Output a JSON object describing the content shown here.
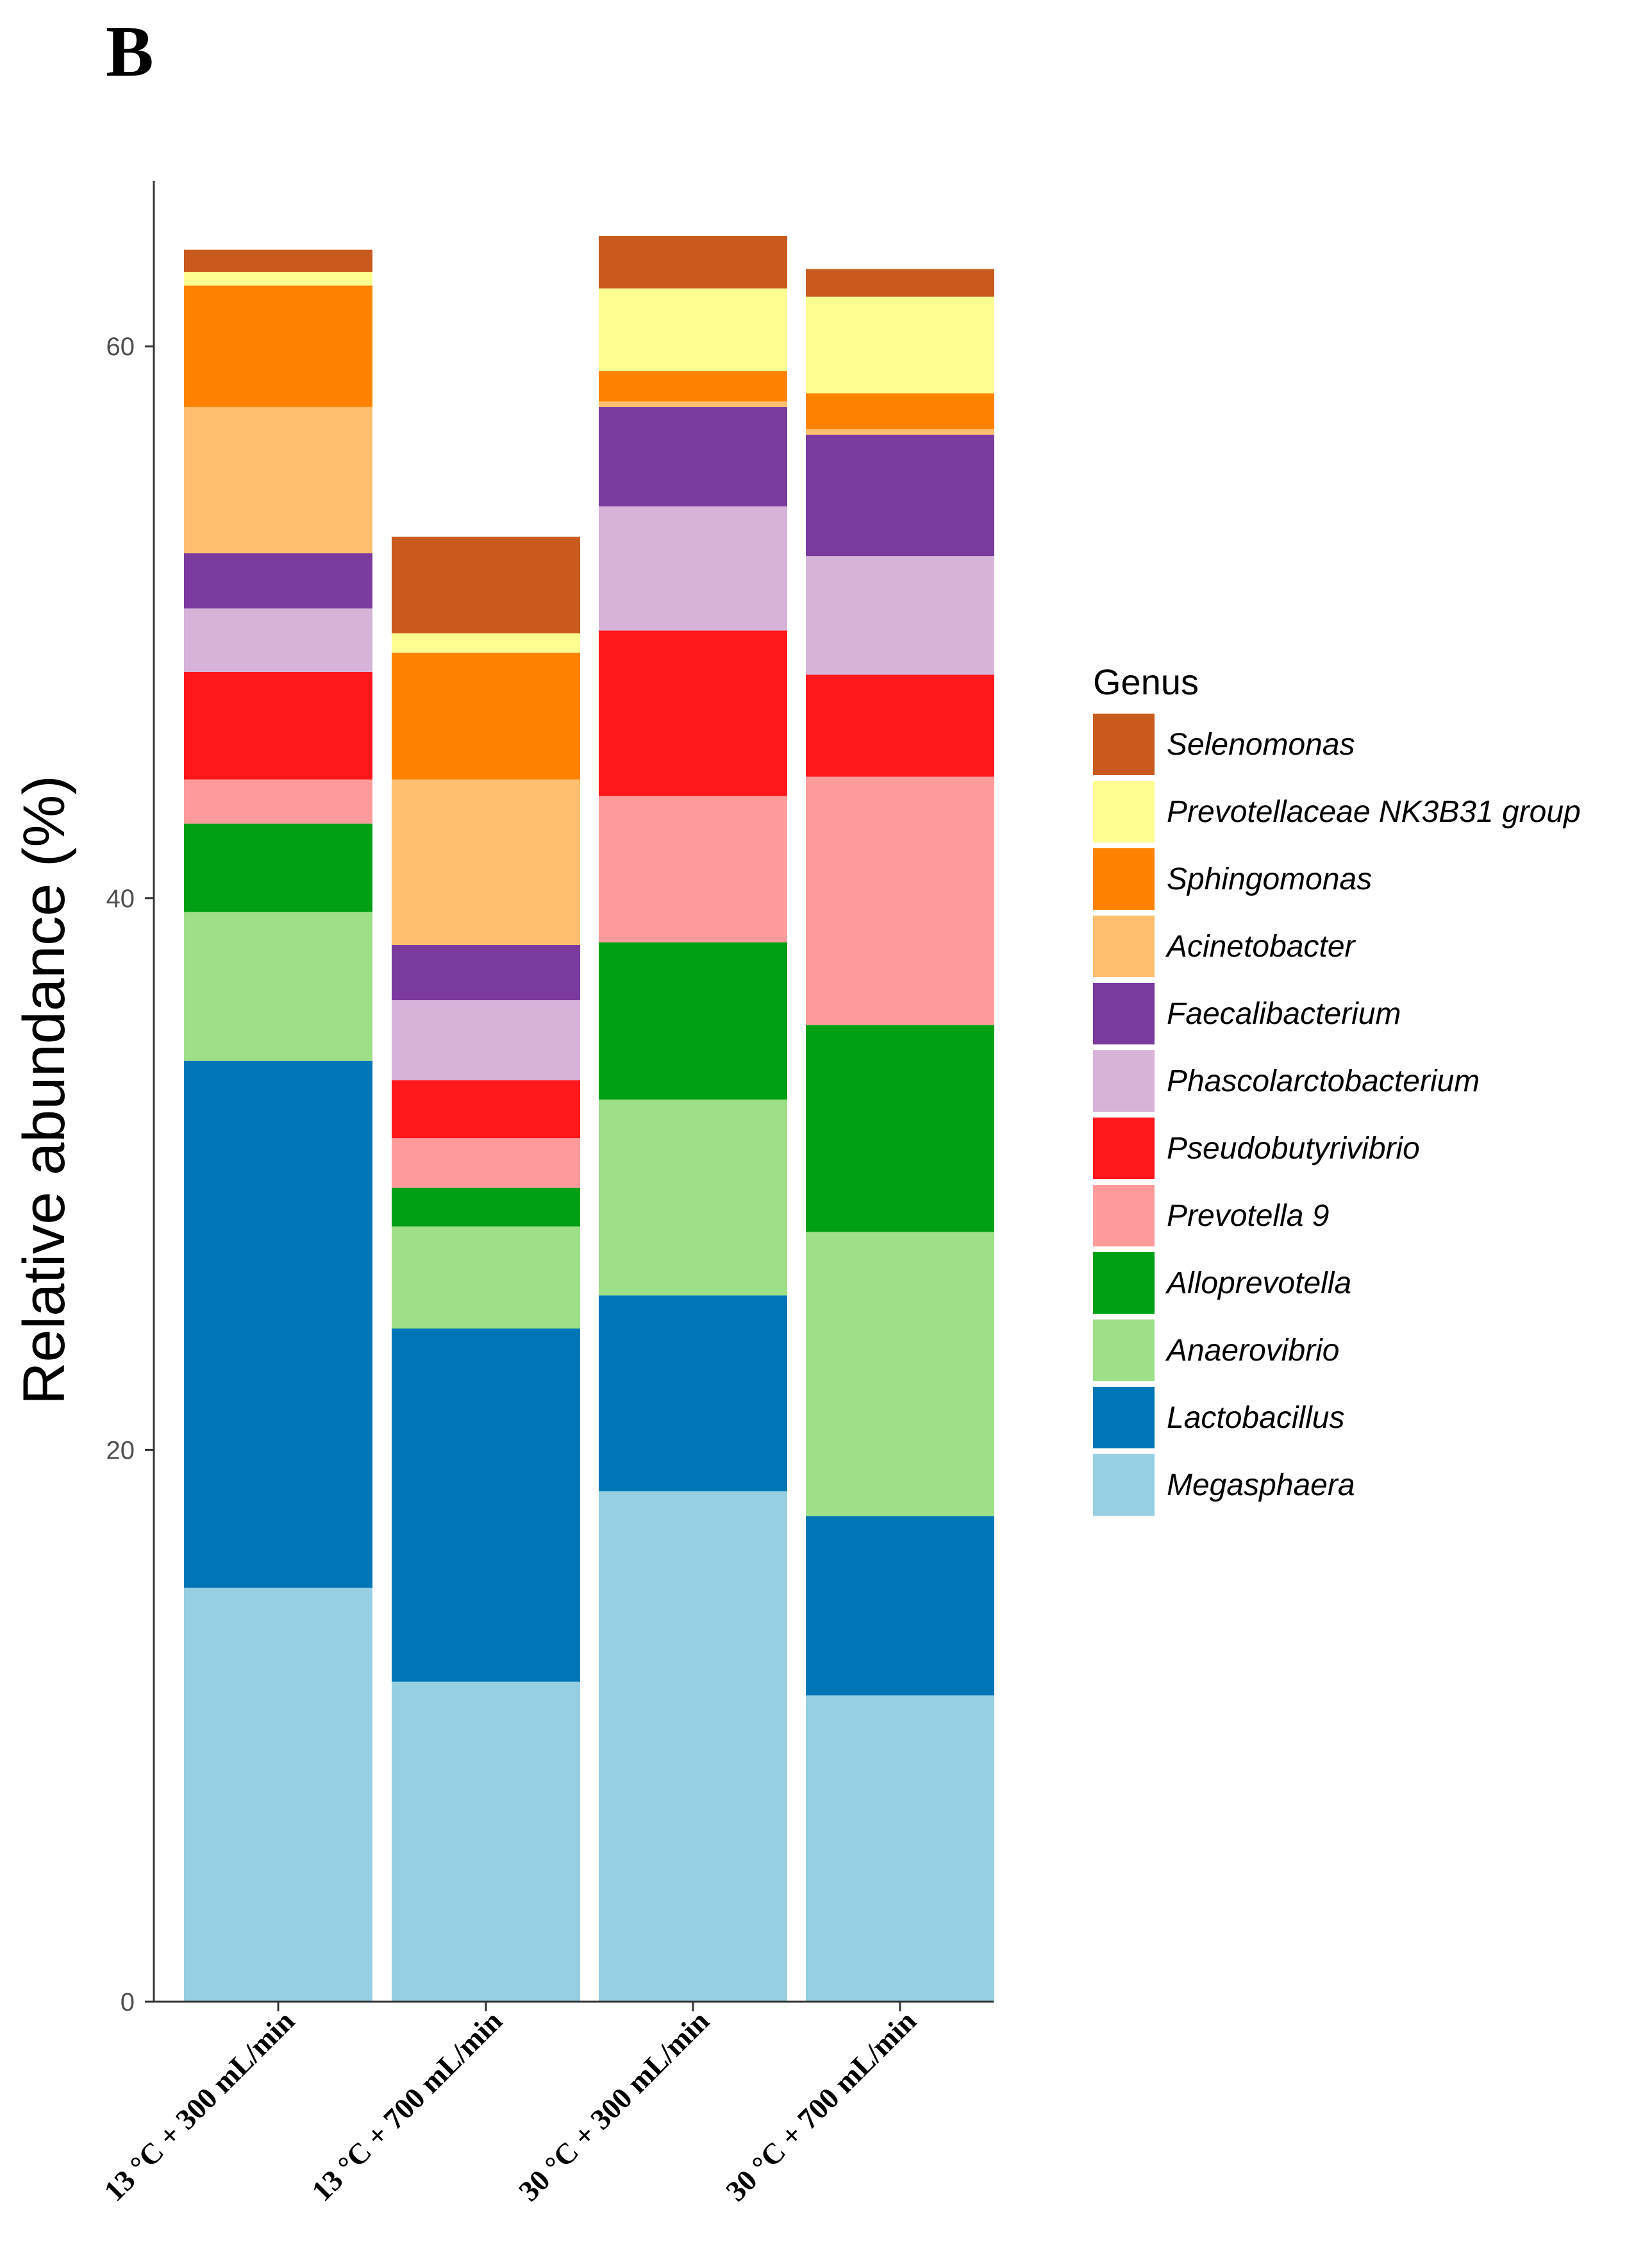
{
  "panel_label": "B",
  "chart_data": {
    "type": "bar",
    "stacked": true,
    "title": "",
    "xlabel": "",
    "ylabel": "Relative abundance (%)",
    "ylim": [
      0,
      66
    ],
    "yticks": [
      0,
      20,
      40,
      60
    ],
    "grid": false,
    "legend_title": "Genus",
    "legend_position": "right",
    "categories": [
      "13 °C + 300 mL/min",
      "13 °C + 700 mL/min",
      "30 °C + 300 mL/min",
      "30 °C + 700 mL/min"
    ],
    "series": [
      {
        "name": "Megasphaera",
        "color": "#96CEE2",
        "values": [
          15.0,
          11.6,
          18.5,
          11.1
        ]
      },
      {
        "name": "Lactobacillus",
        "color": "#0076B7",
        "values": [
          19.1,
          12.8,
          7.1,
          6.5
        ]
      },
      {
        "name": "Anaerovibrio",
        "color": "#9EE087",
        "values": [
          5.4,
          3.7,
          7.1,
          10.3
        ]
      },
      {
        "name": "Alloprevotella",
        "color": "#00A014",
        "values": [
          3.2,
          1.4,
          5.7,
          7.5
        ]
      },
      {
        "name": "Prevotella 9",
        "color": "#FF9B9B",
        "values": [
          1.6,
          1.8,
          5.3,
          9.0
        ]
      },
      {
        "name": "Pseudobutyrivibrio",
        "color": "#FF171C",
        "values": [
          3.9,
          2.1,
          6.0,
          3.7
        ]
      },
      {
        "name": "Phascolarctobacterium",
        "color": "#D7B3DA",
        "values": [
          2.3,
          2.9,
          4.5,
          4.3
        ]
      },
      {
        "name": "Faecalibacterium",
        "color": "#7A3A9E",
        "values": [
          2.0,
          2.0,
          3.6,
          4.4
        ]
      },
      {
        "name": "Acinetobacter",
        "color": "#FFBF6E",
        "values": [
          5.3,
          6.0,
          0.2,
          0.2
        ]
      },
      {
        "name": "Sphingomonas",
        "color": "#FF8200",
        "values": [
          4.4,
          4.6,
          1.1,
          1.3
        ]
      },
      {
        "name": "Prevotellaceae NK3B31 group",
        "color": "#FFFF91",
        "values": [
          0.5,
          0.7,
          3.0,
          3.5
        ]
      },
      {
        "name": "Selenomonas",
        "color": "#C85A1E",
        "values": [
          0.8,
          3.5,
          1.9,
          1.0
        ]
      }
    ]
  }
}
